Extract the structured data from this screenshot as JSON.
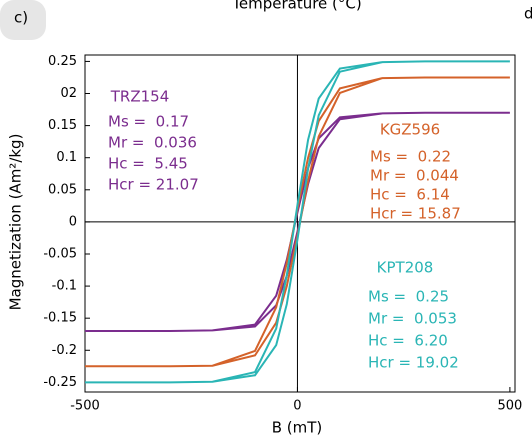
{
  "chart_data": {
    "type": "line",
    "title": "Temperature (°C)",
    "panel_label": "c)",
    "next_panel_label": "d",
    "xlabel": "B (mT)",
    "ylabel": "Magnetization (Am²/kg)",
    "xlim": [
      -500,
      512
    ],
    "ylim": [
      -0.265,
      0.26
    ],
    "xticks": [
      -500,
      0,
      500
    ],
    "yticks": [
      0.25,
      {
        "value": 0.2,
        "label": "02"
      },
      0.15,
      0.1,
      0.05,
      0,
      -0.05,
      -0.1,
      -0.15,
      -0.2,
      -0.25
    ],
    "series": [
      {
        "name": "TRZ154",
        "color": "#7b2d8e",
        "labels": [
          "Ms =  0.17",
          "Mr =  0.036",
          "Hc =  5.45",
          "Hcr = 21.07"
        ],
        "x": [
          -500,
          -300,
          -200,
          -100,
          -50,
          -25,
          0,
          25,
          50,
          100,
          200,
          300,
          500,
          500,
          300,
          200,
          100,
          50,
          25,
          0,
          -25,
          -50,
          -100,
          -200,
          -300,
          -500
        ],
        "values": [
          -0.17,
          -0.17,
          -0.169,
          -0.163,
          -0.13,
          -0.084,
          -0.015,
          0.059,
          0.115,
          0.16,
          0.169,
          0.17,
          0.17,
          0.17,
          0.17,
          0.169,
          0.163,
          0.13,
          0.084,
          0.015,
          -0.059,
          -0.115,
          -0.16,
          -0.169,
          -0.17,
          -0.17
        ]
      },
      {
        "name": "KGZ596",
        "color": "#d4622a",
        "labels": [
          "Ms =  0.22",
          "Mr =  0.044",
          "Hc =  6.14",
          "Hcr = 15.87"
        ],
        "x": [
          -500,
          -300,
          -200,
          -100,
          -50,
          -25,
          0,
          25,
          50,
          100,
          200,
          300,
          500,
          500,
          300,
          200,
          100,
          50,
          25,
          0,
          -25,
          -50,
          -100,
          -200,
          -300,
          -500
        ],
        "values": [
          -0.225,
          -0.225,
          -0.224,
          -0.208,
          -0.157,
          -0.1,
          -0.021,
          0.064,
          0.133,
          0.201,
          0.224,
          0.225,
          0.225,
          0.225,
          0.225,
          0.224,
          0.208,
          0.157,
          0.1,
          0.021,
          -0.064,
          -0.133,
          -0.201,
          -0.224,
          -0.225,
          -0.225
        ]
      },
      {
        "name": "KPT208",
        "color": "#2ab5b5",
        "labels": [
          "Ms =  0.25",
          "Mr =  0.053",
          "Hc =  6.20",
          "Hcr = 19.02"
        ],
        "x": [
          -500,
          -300,
          -200,
          -100,
          -50,
          -25,
          0,
          25,
          50,
          100,
          200,
          300,
          500,
          500,
          300,
          200,
          100,
          50,
          25,
          0,
          -25,
          -50,
          -100,
          -200,
          -300,
          -500
        ],
        "values": [
          -0.25,
          -0.25,
          -0.249,
          -0.239,
          -0.192,
          -0.128,
          -0.027,
          0.083,
          0.166,
          0.234,
          0.249,
          0.25,
          0.25,
          0.25,
          0.25,
          0.249,
          0.239,
          0.192,
          0.128,
          0.027,
          -0.083,
          -0.166,
          -0.234,
          -0.249,
          -0.25,
          -0.25
        ]
      }
    ]
  }
}
